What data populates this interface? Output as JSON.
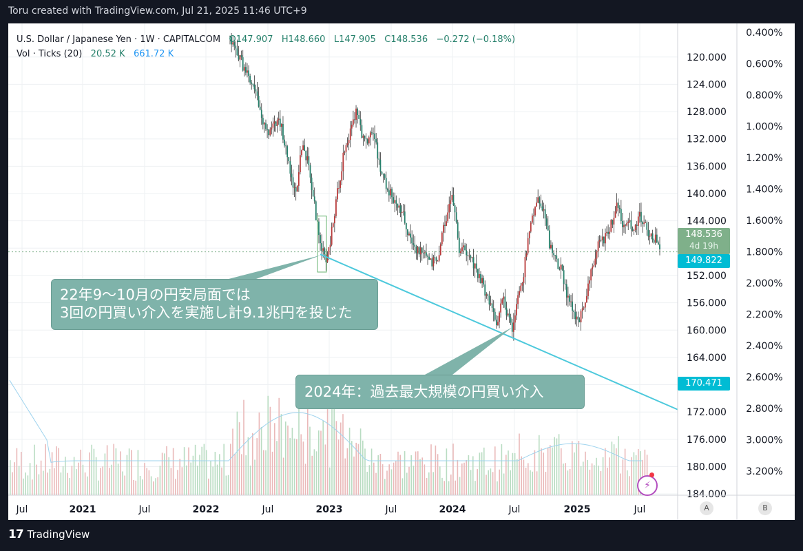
{
  "header": {
    "credit": "Toru created with TradingView.com, Jul 21, 2025 11:46 UTC+9"
  },
  "legend": {
    "symbol": "U.S. Dollar / Japanese Yen · 1W · CAPITALCOM",
    "open": "O147.907",
    "high": "H148.660",
    "low": "L147.905",
    "close": "C148.536",
    "change": "−0.272 (−0.18%)",
    "vol_label": "Vol · Ticks (20)",
    "vol_value": "20.52 K",
    "vol_ma": "661.72 K"
  },
  "price_tag": {
    "price": "148.536",
    "countdown": "4d 19h"
  },
  "line_tag": {
    "price": "149.822",
    "color": "#00bcd4"
  },
  "trend_tag": {
    "price": "170.471",
    "color": "#00bcd4"
  },
  "callouts": {
    "first_line1": "22年9〜10月の円安局面では",
    "first_line2": "3回の円買い介入を実施し計9.1兆円を投じた",
    "second": "2024年：過去最大規模の円買い介入"
  },
  "footer": {
    "brand": "TradingView",
    "btn_a": "A",
    "btn_b": "B"
  },
  "colors": {
    "up": "#26806b",
    "down": "#b83a3a",
    "trend": "#4dc9dc",
    "callout": "#7fb3aa"
  },
  "chart_data": {
    "type": "candlestick",
    "axis_inverted": true,
    "ylim": [
      185.5,
      117.5
    ],
    "y_ticks": [
      "120.000",
      "124.000",
      "128.000",
      "132.000",
      "136.000",
      "140.000",
      "144.000",
      "148.000",
      "152.000",
      "156.000",
      "160.000",
      "164.000",
      "168.000",
      "172.000",
      "176.000",
      "180.000",
      "184.000"
    ],
    "pct_ticks": [
      "0.400%",
      "0.600%",
      "0.800%",
      "1.000%",
      "1.200%",
      "1.400%",
      "1.600%",
      "1.800%",
      "2.000%",
      "2.200%",
      "2.400%",
      "2.600%",
      "2.800%",
      "3.000%",
      "3.200%"
    ],
    "x_ticks": [
      {
        "label": "Jul",
        "bold": false
      },
      {
        "label": "2021",
        "bold": true
      },
      {
        "label": "Jul",
        "bold": false
      },
      {
        "label": "2022",
        "bold": true
      },
      {
        "label": "Jul",
        "bold": false
      },
      {
        "label": "2023",
        "bold": true
      },
      {
        "label": "Jul",
        "bold": false
      },
      {
        "label": "2024",
        "bold": true
      },
      {
        "label": "Jul",
        "bold": false
      },
      {
        "label": "2025",
        "bold": true
      },
      {
        "label": "Jul",
        "bold": false
      }
    ],
    "close_path": [
      [
        0,
        117.0
      ],
      [
        20,
        126.5
      ],
      [
        25,
        131.0
      ],
      [
        35,
        129.5
      ],
      [
        40,
        134.5
      ],
      [
        46,
        140.5
      ],
      [
        50,
        133.0
      ],
      [
        55,
        135.5
      ],
      [
        60,
        143.5
      ],
      [
        64,
        148.0
      ],
      [
        67,
        150.0
      ],
      [
        70,
        147.0
      ],
      [
        75,
        140.0
      ],
      [
        80,
        133.5
      ],
      [
        85,
        130.5
      ],
      [
        88,
        127.5
      ],
      [
        92,
        131.5
      ],
      [
        96,
        133.0
      ],
      [
        100,
        130.5
      ],
      [
        105,
        136.5
      ],
      [
        110,
        139.5
      ],
      [
        115,
        141.0
      ],
      [
        120,
        142.5
      ],
      [
        125,
        146.5
      ],
      [
        130,
        148.0
      ],
      [
        135,
        149.0
      ],
      [
        140,
        150.0
      ],
      [
        145,
        149.5
      ],
      [
        150,
        144.0
      ],
      [
        155,
        141.0
      ],
      [
        157,
        143.5
      ],
      [
        160,
        148.0
      ],
      [
        165,
        148.5
      ],
      [
        170,
        150.5
      ],
      [
        175,
        152.5
      ],
      [
        180,
        155.5
      ],
      [
        185,
        158.0
      ],
      [
        187,
        159.0
      ],
      [
        190,
        155.0
      ],
      [
        195,
        158.5
      ],
      [
        197,
        160.5
      ],
      [
        200,
        156.5
      ],
      [
        205,
        151.5
      ],
      [
        208,
        146.5
      ],
      [
        212,
        142.5
      ],
      [
        215,
        140.5
      ],
      [
        220,
        143.5
      ],
      [
        223,
        147.5
      ],
      [
        228,
        150.0
      ],
      [
        232,
        151.5
      ],
      [
        236,
        155.5
      ],
      [
        240,
        157.5
      ],
      [
        244,
        158.5
      ],
      [
        248,
        155.5
      ],
      [
        252,
        151.5
      ],
      [
        256,
        148.0
      ],
      [
        260,
        147.0
      ],
      [
        264,
        145.5
      ],
      [
        268,
        143.5
      ],
      [
        270,
        141.5
      ],
      [
        274,
        144.5
      ],
      [
        278,
        143.5
      ],
      [
        282,
        145.5
      ],
      [
        286,
        143.5
      ],
      [
        290,
        144.5
      ],
      [
        294,
        146.5
      ],
      [
        298,
        146.5
      ],
      [
        300,
        148.5
      ]
    ],
    "trendline": [
      [
        63,
        148.9
      ],
      [
        300,
        170.5
      ]
    ],
    "current_price": 148.536
  }
}
